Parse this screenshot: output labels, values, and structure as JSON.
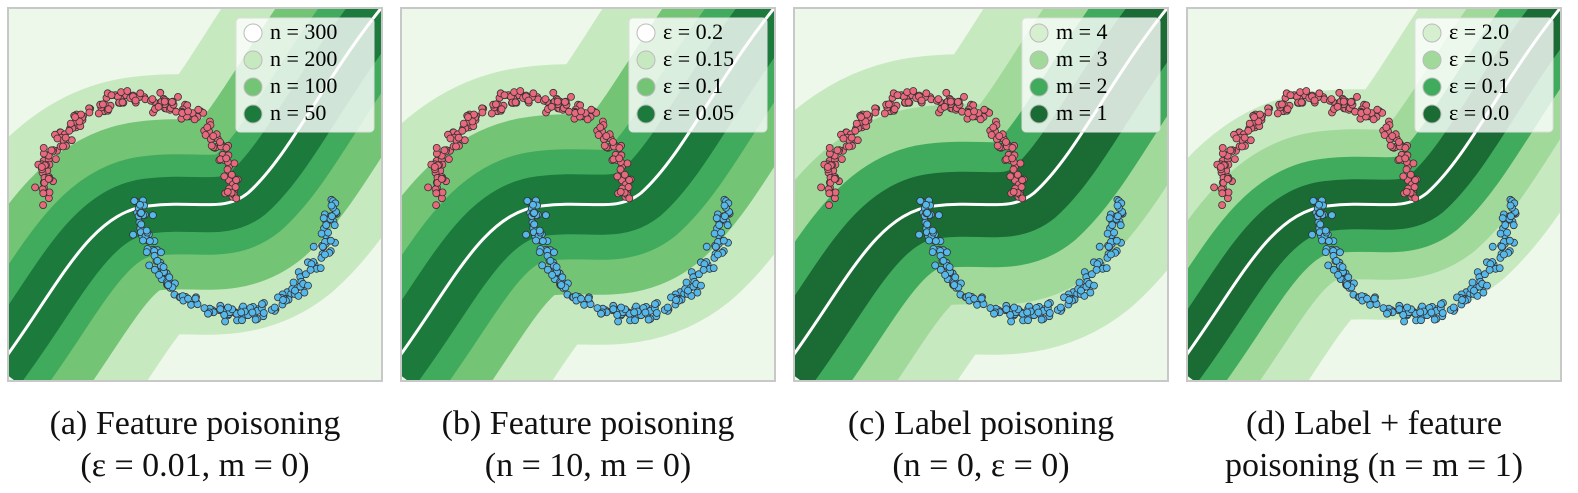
{
  "panels": [
    {
      "legend": [
        {
          "label": "n = 300",
          "color": "#ffffff"
        },
        {
          "label": "n = 200",
          "color": "#c7e9c0"
        },
        {
          "label": "n = 100",
          "color": "#74c476"
        },
        {
          "label": "n = 50",
          "color": "#1b7a3c"
        }
      ],
      "caption": [
        "(a) Feature poisoning",
        "(ε = 0.01, m = 0)"
      ]
    },
    {
      "legend": [
        {
          "label": "ε = 0.2",
          "color": "#ffffff"
        },
        {
          "label": "ε = 0.15",
          "color": "#c7e9c0"
        },
        {
          "label": "ε = 0.1",
          "color": "#74c476"
        },
        {
          "label": "ε = 0.05",
          "color": "#1b7a3c"
        }
      ],
      "caption": [
        "(b) Feature poisoning",
        "(n = 10, m = 0)"
      ]
    },
    {
      "legend": [
        {
          "label": "m = 4",
          "color": "#d5efcf"
        },
        {
          "label": "m = 3",
          "color": "#a1d99b"
        },
        {
          "label": "m = 2",
          "color": "#41ab5d"
        },
        {
          "label": "m = 1",
          "color": "#1b6b35"
        }
      ],
      "caption": [
        "(c) Label poisoning",
        "(n = 0, ε = 0)"
      ]
    },
    {
      "legend": [
        {
          "label": "ε = 2.0",
          "color": "#d5efcf"
        },
        {
          "label": "ε = 0.5",
          "color": "#a1d99b"
        },
        {
          "label": "ε = 0.1",
          "color": "#41ab5d"
        },
        {
          "label": "ε = 0.0",
          "color": "#1b6b35"
        }
      ],
      "caption": [
        "(d) Label + feature",
        "poisoning (n = m = 1)"
      ]
    }
  ]
}
